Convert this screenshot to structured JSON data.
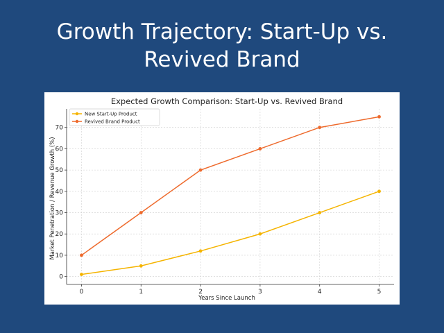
{
  "slide": {
    "title_line1": "Growth Trajectory: Start-Up vs.",
    "title_line2": "Revived Brand"
  },
  "chart_data": {
    "type": "line",
    "title": "Expected Growth Comparison: Start-Up vs. Revived Brand",
    "xlabel": "Years Since Launch",
    "ylabel": "Market Penetration / Revenue Growth (%)",
    "x": [
      0,
      1,
      2,
      3,
      4,
      5
    ],
    "xlim": [
      -0.25,
      5.25
    ],
    "ylim": [
      -3.7,
      78.7
    ],
    "yticks": [
      0,
      10,
      20,
      30,
      40,
      50,
      60,
      70
    ],
    "grid": true,
    "grid_style": "dashed",
    "legend_position": "top-left",
    "series": [
      {
        "name": "New Start-Up Product",
        "color": "#f5b400",
        "values": [
          1,
          5,
          12,
          20,
          30,
          40
        ]
      },
      {
        "name": "Revived Brand Product",
        "color": "#ee6a2c",
        "values": [
          10,
          30,
          50,
          60,
          70,
          75
        ]
      }
    ]
  }
}
